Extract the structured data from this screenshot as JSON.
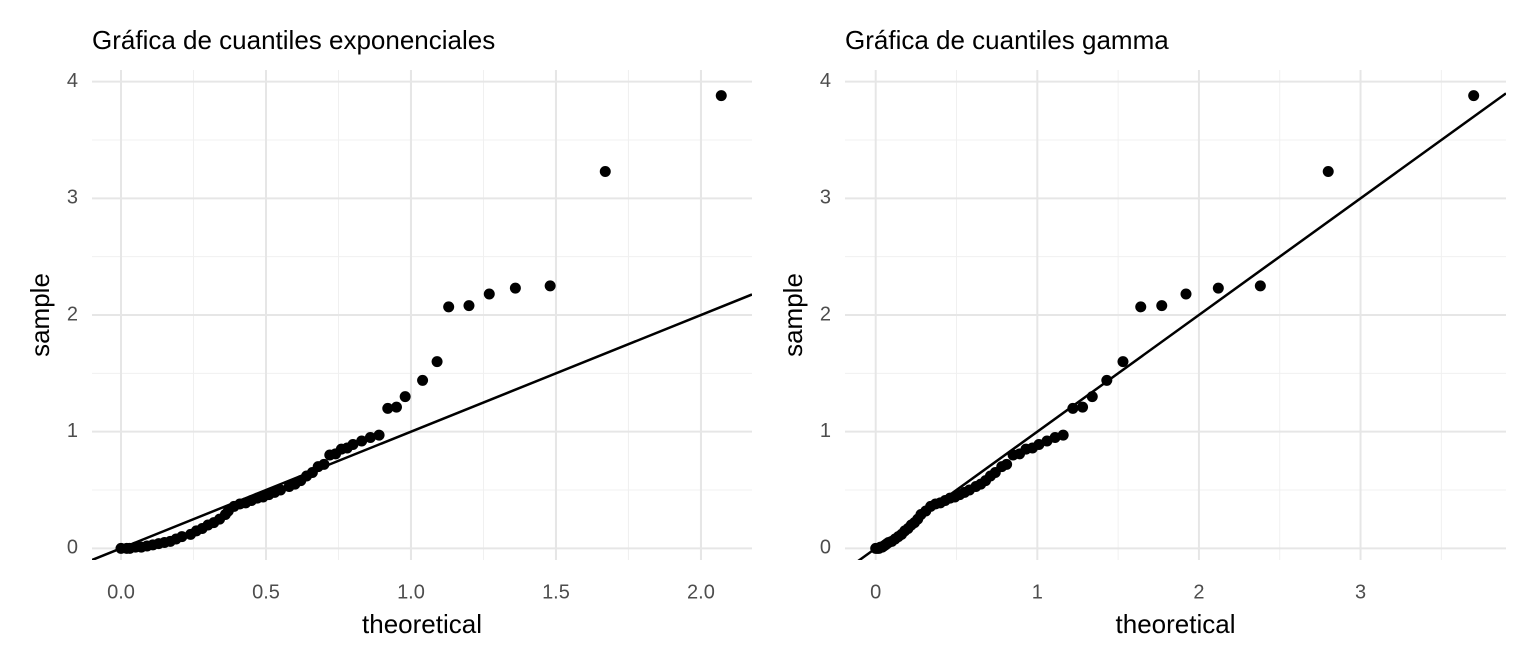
{
  "chart_data": [
    {
      "type": "scatter",
      "title": "Gráfica de cuantiles exponenciales",
      "x_label": "theoretical",
      "y_label": "sample",
      "x": [
        2.07,
        1.67,
        1.48,
        1.36,
        1.27,
        1.2,
        1.13,
        1.09,
        1.04,
        0.98,
        0.95,
        0.92,
        0.89,
        0.86,
        0.83,
        0.8,
        0.78,
        0.76,
        0.74,
        0.72,
        0.7,
        0.68,
        0.66,
        0.64,
        0.62,
        0.6,
        0.58,
        0.55,
        0.53,
        0.51,
        0.49,
        0.47,
        0.45,
        0.43,
        0.41,
        0.39,
        0.37,
        0.36,
        0.34,
        0.32,
        0.3,
        0.28,
        0.26,
        0.24,
        0.21,
        0.19,
        0.17,
        0.15,
        0.13,
        0.11,
        0.09,
        0.07,
        0.05,
        0.03,
        0.02,
        0.0
      ],
      "values": [
        3.88,
        3.23,
        2.25,
        2.23,
        2.18,
        2.08,
        2.07,
        1.6,
        1.44,
        1.3,
        1.21,
        1.2,
        0.97,
        0.95,
        0.92,
        0.89,
        0.86,
        0.85,
        0.81,
        0.8,
        0.72,
        0.7,
        0.65,
        0.62,
        0.58,
        0.55,
        0.53,
        0.5,
        0.48,
        0.46,
        0.44,
        0.43,
        0.41,
        0.39,
        0.38,
        0.36,
        0.32,
        0.29,
        0.25,
        0.22,
        0.2,
        0.17,
        0.15,
        0.12,
        0.1,
        0.08,
        0.06,
        0.05,
        0.04,
        0.03,
        0.02,
        0.01,
        0.01,
        0.0,
        0.0,
        0.0
      ],
      "color": "#000000",
      "ref_line": {
        "slope": 1,
        "intercept": 0,
        "color": "#000000"
      },
      "xlim": [
        -0.1,
        2.176
      ],
      "ylim": [
        -0.1,
        4.1
      ],
      "xticks": [
        {
          "value": 0,
          "label": "0.0"
        },
        0.5,
        {
          "value": 1,
          "label": "1.0"
        },
        1.5,
        {
          "value": 2,
          "label": "2.0"
        }
      ],
      "yticks": [
        0,
        1,
        2,
        3,
        4
      ],
      "minor_xticks": [
        0.25,
        0.75,
        1.25,
        1.75
      ],
      "minor_yticks": [
        0.5,
        1.5,
        2.5,
        3.5
      ],
      "grid": true
    },
    {
      "type": "scatter",
      "title": "Gráfica de cuantiles gamma",
      "x_label": "theoretical",
      "y_label": "sample",
      "x": [
        3.7,
        2.8,
        2.38,
        2.12,
        1.92,
        1.77,
        1.64,
        1.53,
        1.43,
        1.34,
        1.28,
        1.22,
        1.16,
        1.11,
        1.06,
        1.01,
        0.97,
        0.93,
        0.89,
        0.85,
        0.81,
        0.78,
        0.74,
        0.71,
        0.68,
        0.65,
        0.62,
        0.58,
        0.55,
        0.52,
        0.49,
        0.46,
        0.43,
        0.4,
        0.37,
        0.34,
        0.31,
        0.28,
        0.26,
        0.24,
        0.22,
        0.2,
        0.18,
        0.16,
        0.14,
        0.12,
        0.1,
        0.08,
        0.07,
        0.06,
        0.05,
        0.04,
        0.03,
        0.02,
        0.01,
        0.0
      ],
      "values": [
        3.88,
        3.23,
        2.25,
        2.23,
        2.18,
        2.08,
        2.07,
        1.6,
        1.44,
        1.3,
        1.21,
        1.2,
        0.97,
        0.95,
        0.92,
        0.89,
        0.86,
        0.85,
        0.81,
        0.8,
        0.72,
        0.7,
        0.65,
        0.62,
        0.58,
        0.55,
        0.53,
        0.5,
        0.48,
        0.46,
        0.44,
        0.43,
        0.41,
        0.39,
        0.38,
        0.36,
        0.32,
        0.29,
        0.25,
        0.22,
        0.2,
        0.17,
        0.15,
        0.12,
        0.1,
        0.08,
        0.06,
        0.05,
        0.04,
        0.03,
        0.02,
        0.01,
        0.01,
        0.0,
        0.0,
        0.0
      ],
      "color": "#000000",
      "ref_line": {
        "slope": 1,
        "intercept": 0,
        "color": "#000000"
      },
      "xlim": [
        -0.19,
        3.9
      ],
      "ylim": [
        -0.1,
        4.1
      ],
      "xticks": [
        0,
        1,
        2,
        3
      ],
      "yticks": [
        0,
        1,
        2,
        3,
        4
      ],
      "minor_xticks": [
        0.5,
        1.5,
        2.5,
        3.5
      ],
      "minor_yticks": [
        0.5,
        1.5,
        2.5,
        3.5
      ],
      "grid": true
    }
  ]
}
